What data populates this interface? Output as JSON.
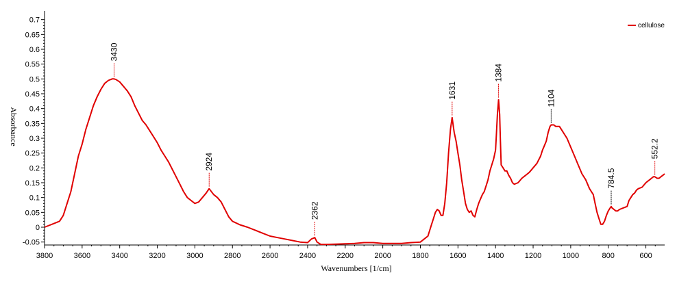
{
  "chart_data": {
    "type": "line",
    "xlabel": "Wavenumbers [1/cm]",
    "ylabel": "Absorbance",
    "xlim": [
      3800,
      500
    ],
    "ylim": [
      -0.06,
      0.72
    ],
    "x_reversed": true,
    "x_ticks": [
      3800,
      3600,
      3400,
      3200,
      3000,
      2800,
      2600,
      2400,
      2200,
      2000,
      1800,
      1600,
      1400,
      1200,
      1000,
      800,
      600
    ],
    "y_ticks": [
      -0.05,
      0,
      0.05,
      0.1,
      0.15,
      0.2,
      0.25,
      0.3,
      0.35,
      0.4,
      0.45,
      0.5,
      0.55,
      0.6,
      0.65,
      0.7
    ],
    "legend": {
      "position": "top-right",
      "entries": [
        "cellulose"
      ]
    },
    "colors": {
      "series": "#e00000",
      "axis": "#000000"
    },
    "series": [
      {
        "name": "cellulose",
        "x": [
          3800,
          3760,
          3720,
          3700,
          3680,
          3660,
          3640,
          3620,
          3600,
          3580,
          3560,
          3540,
          3520,
          3500,
          3480,
          3460,
          3440,
          3430,
          3420,
          3400,
          3380,
          3360,
          3340,
          3320,
          3300,
          3280,
          3260,
          3240,
          3220,
          3200,
          3180,
          3160,
          3140,
          3120,
          3100,
          3080,
          3060,
          3040,
          3020,
          3000,
          2980,
          2960,
          2940,
          2924,
          2900,
          2880,
          2860,
          2840,
          2820,
          2800,
          2760,
          2720,
          2680,
          2640,
          2600,
          2560,
          2520,
          2480,
          2440,
          2400,
          2380,
          2362,
          2350,
          2330,
          2300,
          2250,
          2200,
          2150,
          2100,
          2050,
          2000,
          1950,
          1900,
          1850,
          1800,
          1780,
          1760,
          1750,
          1740,
          1730,
          1720,
          1710,
          1700,
          1690,
          1680,
          1670,
          1660,
          1650,
          1640,
          1631,
          1620,
          1610,
          1600,
          1590,
          1580,
          1570,
          1560,
          1550,
          1540,
          1530,
          1520,
          1510,
          1500,
          1490,
          1480,
          1470,
          1460,
          1450,
          1440,
          1430,
          1420,
          1410,
          1400,
          1395,
          1390,
          1384,
          1378,
          1374,
          1370,
          1360,
          1350,
          1340,
          1330,
          1320,
          1310,
          1300,
          1280,
          1260,
          1240,
          1220,
          1200,
          1180,
          1160,
          1150,
          1140,
          1130,
          1120,
          1110,
          1104,
          1090,
          1080,
          1060,
          1040,
          1020,
          1000,
          980,
          960,
          940,
          920,
          900,
          880,
          870,
          860,
          850,
          840,
          830,
          820,
          810,
          800,
          790,
          784.5,
          780,
          770,
          760,
          750,
          740,
          720,
          700,
          690,
          680,
          670,
          660,
          650,
          640,
          620,
          600,
          590,
          580,
          570,
          560,
          552.2,
          540,
          530,
          520,
          510,
          500
        ],
        "y": [
          0.0,
          0.01,
          0.02,
          0.04,
          0.08,
          0.12,
          0.18,
          0.24,
          0.28,
          0.33,
          0.37,
          0.41,
          0.44,
          0.465,
          0.485,
          0.495,
          0.5,
          0.5,
          0.498,
          0.49,
          0.475,
          0.46,
          0.44,
          0.41,
          0.385,
          0.36,
          0.345,
          0.325,
          0.305,
          0.285,
          0.26,
          0.24,
          0.22,
          0.195,
          0.17,
          0.145,
          0.12,
          0.1,
          0.09,
          0.08,
          0.085,
          0.1,
          0.115,
          0.13,
          0.11,
          0.1,
          0.085,
          0.06,
          0.035,
          0.02,
          0.008,
          0.0,
          -0.01,
          -0.02,
          -0.03,
          -0.035,
          -0.04,
          -0.045,
          -0.05,
          -0.052,
          -0.04,
          -0.035,
          -0.05,
          -0.058,
          -0.058,
          -0.057,
          -0.056,
          -0.055,
          -0.052,
          -0.052,
          -0.055,
          -0.055,
          -0.055,
          -0.052,
          -0.05,
          -0.04,
          -0.03,
          -0.01,
          0.01,
          0.03,
          0.05,
          0.06,
          0.055,
          0.04,
          0.04,
          0.08,
          0.15,
          0.25,
          0.33,
          0.37,
          0.32,
          0.29,
          0.25,
          0.21,
          0.16,
          0.12,
          0.08,
          0.06,
          0.05,
          0.055,
          0.04,
          0.035,
          0.06,
          0.08,
          0.095,
          0.11,
          0.12,
          0.14,
          0.16,
          0.19,
          0.21,
          0.23,
          0.26,
          0.32,
          0.38,
          0.43,
          0.38,
          0.29,
          0.21,
          0.2,
          0.19,
          0.19,
          0.175,
          0.165,
          0.15,
          0.145,
          0.15,
          0.165,
          0.175,
          0.185,
          0.2,
          0.215,
          0.24,
          0.26,
          0.275,
          0.29,
          0.32,
          0.34,
          0.345,
          0.345,
          0.34,
          0.34,
          0.32,
          0.3,
          0.27,
          0.24,
          0.21,
          0.18,
          0.16,
          0.13,
          0.11,
          0.08,
          0.05,
          0.03,
          0.01,
          0.01,
          0.02,
          0.04,
          0.055,
          0.065,
          0.07,
          0.065,
          0.06,
          0.055,
          0.055,
          0.06,
          0.065,
          0.07,
          0.09,
          0.1,
          0.11,
          0.115,
          0.125,
          0.13,
          0.135,
          0.15,
          0.155,
          0.16,
          0.165,
          0.17,
          0.17,
          0.165,
          0.165,
          0.17,
          0.175,
          0.18
        ]
      }
    ],
    "peak_labels": [
      {
        "x": 3430,
        "y": 0.5,
        "label": "3430",
        "color": "#e00000"
      },
      {
        "x": 2924,
        "y": 0.13,
        "label": "2924",
        "color": "#e00000"
      },
      {
        "x": 2362,
        "y": -0.035,
        "label": "2362",
        "color": "#e00000"
      },
      {
        "x": 1631,
        "y": 0.37,
        "label": "1631",
        "color": "#e00000"
      },
      {
        "x": 1384,
        "y": 0.43,
        "label": "1384",
        "color": "#e00000"
      },
      {
        "x": 1104,
        "y": 0.345,
        "label": "1104",
        "color": "#000000"
      },
      {
        "x": 784.5,
        "y": 0.07,
        "label": "784.5",
        "color": "#000000"
      },
      {
        "x": 552.2,
        "y": 0.17,
        "label": "552.2",
        "color": "#e00000"
      }
    ]
  }
}
